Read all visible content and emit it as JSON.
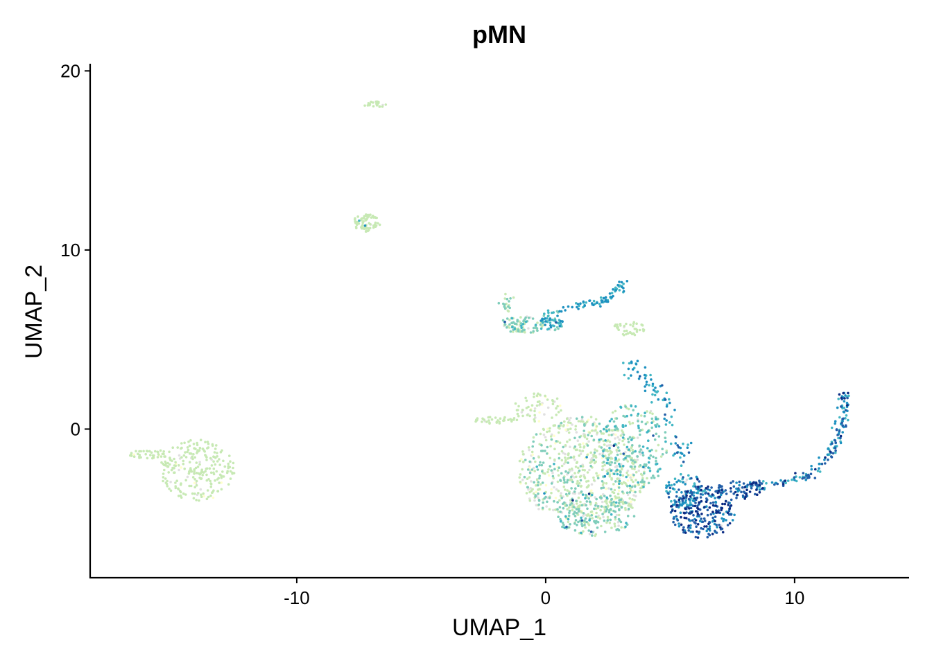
{
  "chart_data": {
    "type": "scatter",
    "title": "pMN",
    "xlabel": "UMAP_1",
    "ylabel": "UMAP_2",
    "xlim": [
      -18.3,
      14.6
    ],
    "ylim": [
      -8.3,
      20.4
    ],
    "xticks": [
      -10,
      0,
      10
    ],
    "yticks": [
      0,
      10,
      20
    ],
    "grid": false,
    "legend": "none",
    "color_scale": [
      "#e0e0e0",
      "#ffffcc",
      "#c7e9b4",
      "#7fcdbb",
      "#41b6c4",
      "#1d91c0",
      "#225ea8",
      "#0c2c84"
    ],
    "regions": [
      {
        "cx": -14.0,
        "cy": -2.3,
        "rx": 1.5,
        "ry": 1.7,
        "n": 240,
        "expr": [
          0.08,
          0.18
        ],
        "note": "left cluster"
      },
      {
        "cx": -16.0,
        "cy": -1.4,
        "rx": 0.9,
        "ry": 0.25,
        "n": 40,
        "expr": [
          0.08,
          0.15
        ]
      },
      {
        "cx": -7.2,
        "cy": 11.5,
        "rx": 0.55,
        "ry": 0.5,
        "n": 70,
        "expr": [
          0.08,
          0.14
        ]
      },
      {
        "cx": -6.8,
        "cy": 18.1,
        "rx": 0.5,
        "ry": 0.18,
        "n": 22,
        "expr": [
          0.08,
          0.12
        ]
      },
      {
        "cx": 1.5,
        "cy": -2.3,
        "rx": 2.6,
        "ry": 3.0,
        "n": 700,
        "expr": [
          0.0,
          0.32
        ]
      },
      {
        "cx": 3.5,
        "cy": -1.0,
        "rx": 1.4,
        "ry": 2.4,
        "n": 240,
        "expr": [
          0.15,
          0.55
        ]
      },
      {
        "cx": 2.0,
        "cy": -4.8,
        "rx": 1.6,
        "ry": 1.2,
        "n": 180,
        "expr": [
          0.15,
          0.45
        ]
      },
      {
        "cx": 6.3,
        "cy": -4.6,
        "rx": 1.3,
        "ry": 1.5,
        "n": 260,
        "expr": [
          0.6,
          1.0
        ]
      },
      {
        "cx": 5.6,
        "cy": -3.4,
        "rx": 0.8,
        "ry": 0.9,
        "n": 80,
        "expr": [
          0.45,
          0.85
        ]
      },
      {
        "cx": 7.8,
        "cy": -3.4,
        "rx": 1.0,
        "ry": 0.5,
        "n": 70,
        "expr": [
          0.7,
          1.0
        ]
      },
      {
        "cx": -0.9,
        "cy": 5.8,
        "rx": 0.8,
        "ry": 0.5,
        "n": 80,
        "expr": [
          0.15,
          0.45
        ]
      },
      {
        "cx": 0.3,
        "cy": 6.1,
        "rx": 0.5,
        "ry": 0.6,
        "n": 60,
        "expr": [
          0.3,
          0.7
        ]
      },
      {
        "cx": 3.3,
        "cy": 5.6,
        "rx": 0.7,
        "ry": 0.4,
        "n": 40,
        "expr": [
          0.1,
          0.25
        ]
      },
      {
        "cx": -0.3,
        "cy": 1.2,
        "rx": 1.0,
        "ry": 0.8,
        "n": 60,
        "expr": [
          0.0,
          0.2
        ]
      },
      {
        "cx": -2.0,
        "cy": 0.5,
        "rx": 0.9,
        "ry": 0.2,
        "n": 35,
        "expr": [
          0.08,
          0.2
        ]
      }
    ],
    "paths": [
      {
        "points": [
          [
            0.5,
            6.6
          ],
          [
            1.5,
            7.0
          ],
          [
            2.3,
            7.1
          ],
          [
            2.8,
            7.7
          ],
          [
            3.2,
            8.3
          ]
        ],
        "n": 70,
        "spread": 0.12,
        "expr": [
          0.45,
          0.75
        ]
      },
      {
        "points": [
          [
            3.3,
            4.0
          ],
          [
            3.8,
            2.8
          ],
          [
            4.5,
            2.1
          ],
          [
            5.0,
            0.8
          ],
          [
            5.3,
            -0.6
          ],
          [
            5.5,
            -2.0
          ]
        ],
        "n": 80,
        "spread": 0.2,
        "expr": [
          0.45,
          0.8
        ]
      },
      {
        "points": [
          [
            7.8,
            -3.2
          ],
          [
            9.5,
            -3.0
          ],
          [
            10.8,
            -2.5
          ],
          [
            11.4,
            -1.5
          ],
          [
            11.8,
            -0.4
          ],
          [
            12.0,
            0.8
          ],
          [
            12.0,
            2.1
          ]
        ],
        "n": 160,
        "spread": 0.12,
        "expr": [
          0.45,
          0.95
        ]
      },
      {
        "points": [
          [
            -1.6,
            7.3
          ],
          [
            -1.5,
            6.5
          ],
          [
            -1.5,
            5.6
          ]
        ],
        "n": 25,
        "spread": 0.12,
        "expr": [
          0.15,
          0.4
        ]
      }
    ]
  }
}
